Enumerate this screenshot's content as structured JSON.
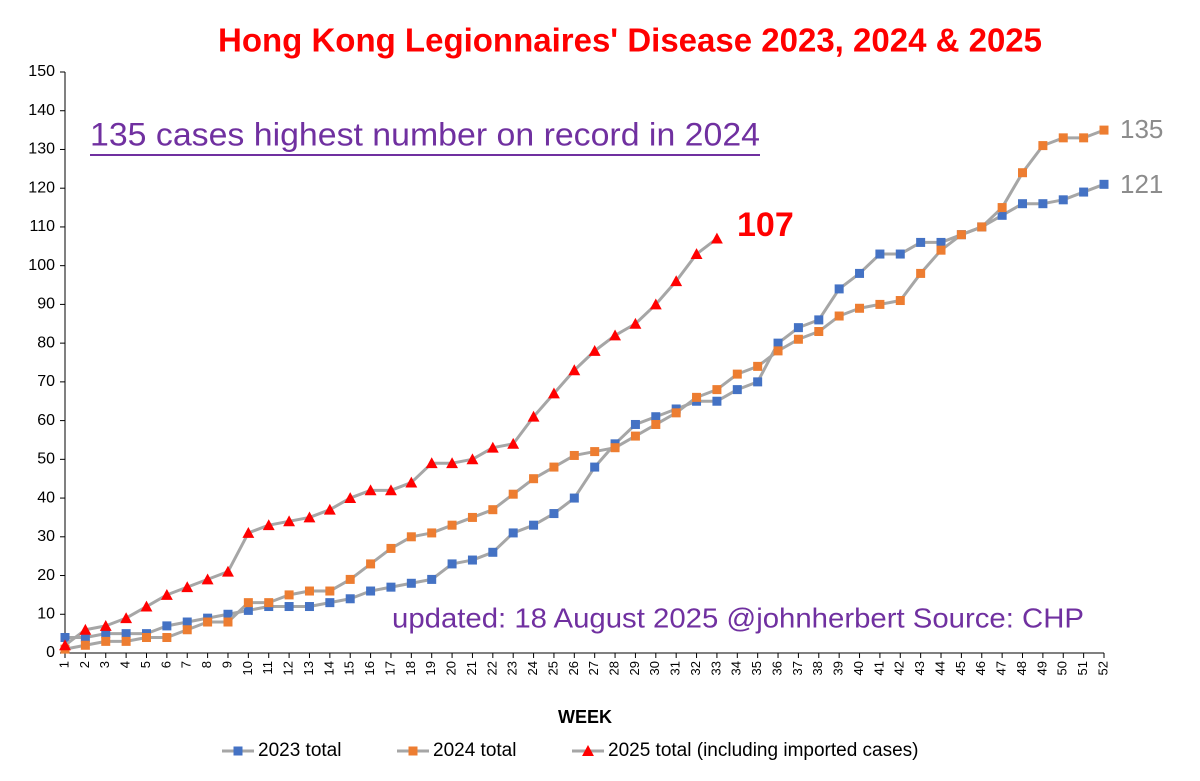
{
  "chart_data": {
    "type": "line",
    "title": "Hong Kong Legionnaires' Disease  2023, 2024 & 2025",
    "x_label": "WEEK",
    "categories": [
      "1",
      "2",
      "3",
      "4",
      "5",
      "6",
      "7",
      "8",
      "9",
      "10",
      "11",
      "12",
      "13",
      "14",
      "15",
      "16",
      "17",
      "18",
      "19",
      "20",
      "21",
      "22",
      "23",
      "24",
      "25",
      "26",
      "27",
      "28",
      "29",
      "30",
      "31",
      "32",
      "33",
      "34",
      "35",
      "36",
      "37",
      "38",
      "39",
      "40",
      "41",
      "42",
      "43",
      "44",
      "45",
      "46",
      "47",
      "48",
      "49",
      "50",
      "51",
      "52"
    ],
    "line_color": "#a6a6a6",
    "series": [
      {
        "name": "2023 total",
        "color": "#4472c4",
        "marker": "square",
        "values": [
          4,
          4,
          5,
          5,
          5,
          7,
          8,
          9,
          10,
          11,
          12,
          12,
          12,
          13,
          14,
          16,
          17,
          18,
          19,
          23,
          24,
          26,
          31,
          33,
          36,
          40,
          48,
          54,
          59,
          61,
          63,
          65,
          65,
          68,
          70,
          80,
          84,
          86,
          94,
          98,
          103,
          103,
          106,
          106,
          108,
          110,
          113,
          116,
          116,
          117,
          119,
          121
        ]
      },
      {
        "name": "2024 total",
        "color": "#ed7d31",
        "marker": "square",
        "values": [
          1,
          2,
          3,
          3,
          4,
          4,
          6,
          8,
          8,
          13,
          13,
          15,
          16,
          16,
          19,
          23,
          27,
          30,
          31,
          33,
          35,
          37,
          41,
          45,
          48,
          51,
          52,
          53,
          56,
          59,
          62,
          66,
          68,
          72,
          74,
          78,
          81,
          83,
          87,
          89,
          90,
          91,
          98,
          104,
          108,
          110,
          115,
          124,
          131,
          133,
          133,
          135
        ]
      },
      {
        "name": "2025 total (including imported cases)",
        "color": "#ff0000",
        "marker": "triangle",
        "values": [
          2,
          6,
          7,
          9,
          12,
          15,
          17,
          19,
          21,
          31,
          33,
          34,
          35,
          37,
          40,
          42,
          42,
          44,
          49,
          49,
          50,
          53,
          54,
          61,
          67,
          73,
          78,
          82,
          85,
          90,
          96,
          103,
          107,
          null,
          null,
          null,
          null,
          null,
          null,
          null,
          null,
          null,
          null,
          null,
          null,
          null,
          null,
          null,
          null,
          null,
          null,
          null
        ]
      }
    ],
    "ylim": [
      0,
      150
    ],
    "yticks": [
      0,
      10,
      20,
      30,
      40,
      50,
      60,
      70,
      80,
      90,
      100,
      110,
      120,
      130,
      140,
      150
    ],
    "grid": false,
    "legend": "bottom",
    "annotations": [
      "135 cases highest number on record in 2024",
      "updated: 18 August 2025  @johnherbert   Source: CHP",
      "107",
      "135",
      "121"
    ]
  }
}
